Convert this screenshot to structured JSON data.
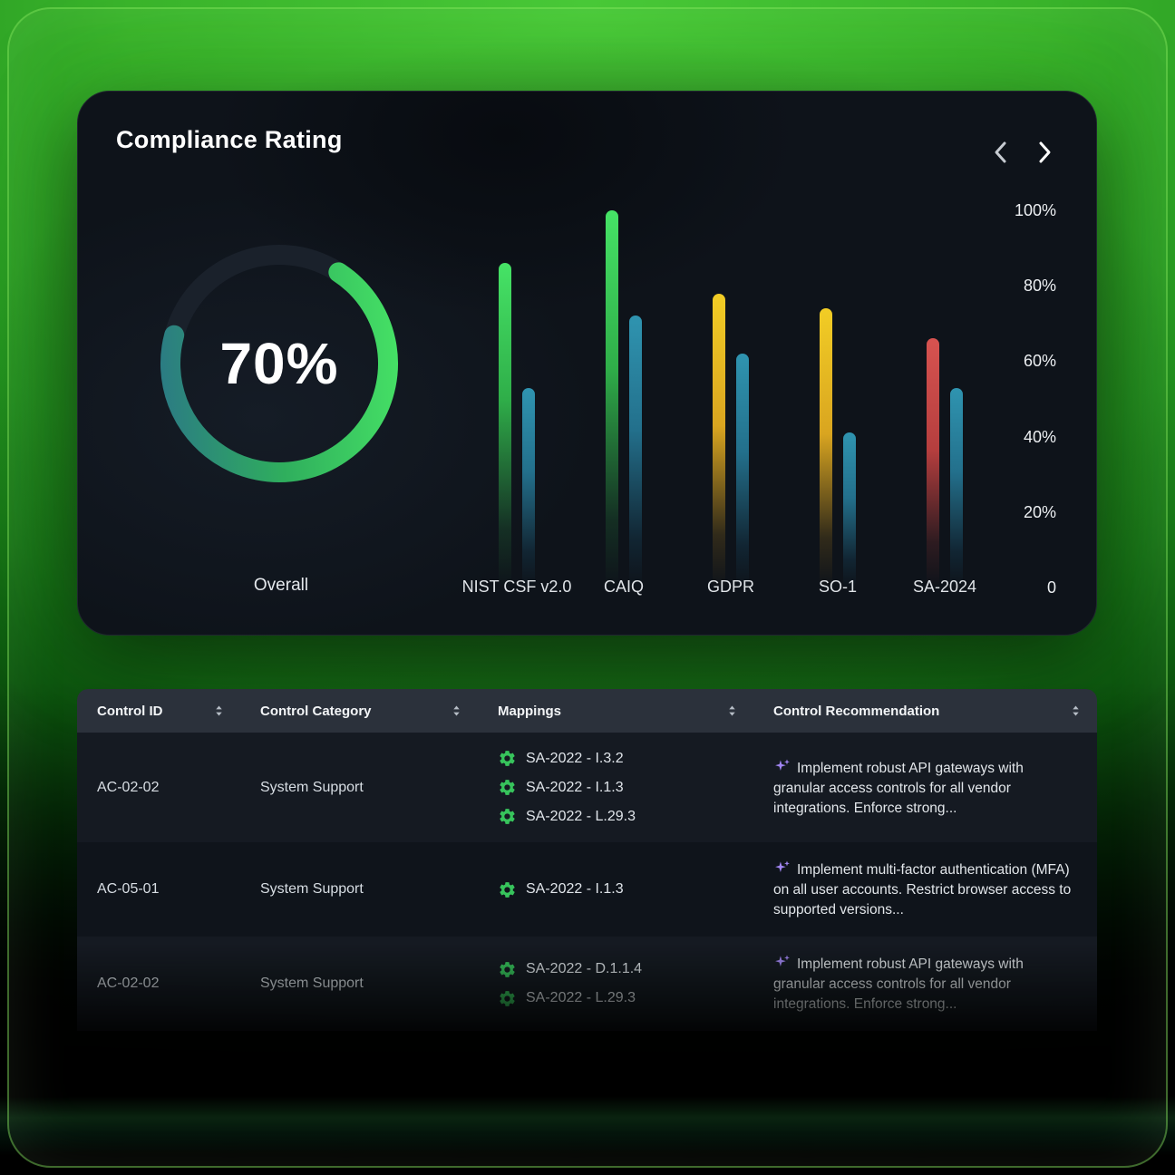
{
  "card": {
    "title": "Compliance Rating"
  },
  "chart_data": {
    "type": "bar",
    "title": "Compliance Rating",
    "donut": {
      "value": 70,
      "value_label": "70%",
      "label": "Overall"
    },
    "categories": [
      "NIST CSF v2.0",
      "CAIQ",
      "GDPR",
      "SO-1",
      "SA-2024"
    ],
    "series": [
      {
        "name": "framework-score",
        "values": [
          86,
          100,
          78,
          74,
          66
        ],
        "colors": [
          "green",
          "green",
          "yellow",
          "yellow",
          "red"
        ]
      },
      {
        "name": "secondary-score",
        "values": [
          53,
          72,
          62,
          41,
          53
        ],
        "colors": [
          "teal",
          "teal",
          "teal",
          "teal",
          "teal"
        ]
      }
    ],
    "y_ticks": [
      "100%",
      "80%",
      "60%",
      "40%",
      "20%",
      "0"
    ],
    "ylim": [
      0,
      100
    ],
    "grid": false,
    "legend_position": "none"
  },
  "colors": {
    "green": "#3ecf5e",
    "teal": "#2e8ba6",
    "yellow": "#eec829",
    "red": "#cf4d4d",
    "purple": "#a185f2",
    "card_bg": "#0e131a",
    "header_bg": "#2b313b"
  },
  "table": {
    "columns": [
      "Control ID",
      "Control Category",
      "Mappings",
      "Control Recommendation"
    ],
    "rows": [
      {
        "control_id": "AC-02-02",
        "category": "System Support",
        "mappings": [
          "SA-2022 - I.3.2",
          "SA-2022 - I.1.3",
          "SA-2022 - L.29.3"
        ],
        "recommendation": "Implement robust API gateways with granular access controls for all vendor integrations. Enforce strong..."
      },
      {
        "control_id": "AC-05-01",
        "category": "System Support",
        "mappings": [
          "SA-2022 - I.1.3"
        ],
        "recommendation": "Implement multi-factor authentication (MFA) on all user accounts. Restrict browser access to supported versions..."
      },
      {
        "control_id": "AC-02-02",
        "category": "System Support",
        "mappings": [
          "SA-2022 - D.1.1.4",
          "SA-2022 - L.29.3"
        ],
        "recommendation": "Implement robust API gateways with granular access controls for all vendor integrations. Enforce strong..."
      }
    ]
  }
}
